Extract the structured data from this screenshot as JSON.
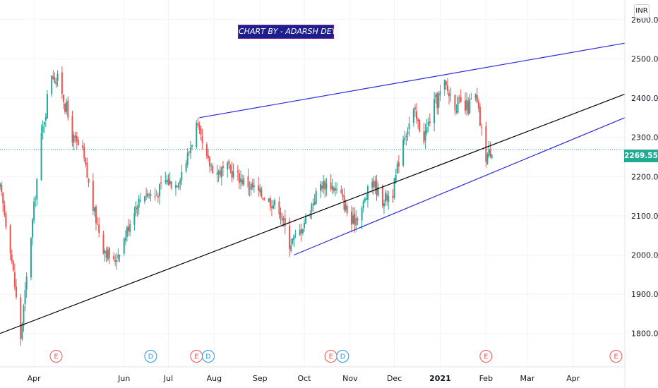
{
  "header": {
    "title": "CHART BY - ADARSH DEY",
    "currency": "INR"
  },
  "last_price": "2269.55",
  "colors": {
    "up": "#26a69a",
    "down": "#ef5350",
    "trendline_blue": "#2a2adb",
    "trendline_black": "#000000",
    "last_price_tag": "#22ab94",
    "event_earnings": "#ef5350",
    "event_dividend": "#2196f3"
  },
  "chart_data": {
    "type": "candlestick",
    "symbol_currency": "INR",
    "ylim": [
      1715,
      2650
    ],
    "y_ticks": [
      "1800.00",
      "1900.00",
      "2000.00",
      "2100.00",
      "2200.00",
      "2300.00",
      "2400.00",
      "2500.00",
      "2600.00"
    ],
    "y_tick_values": [
      1800,
      1900,
      2000,
      2100,
      2200,
      2300,
      2400,
      2500,
      2600
    ],
    "x_ticks": [
      "Apr",
      "Jun",
      "Jul",
      "Aug",
      "Sep",
      "Oct",
      "Nov",
      "Dec",
      "2021",
      "Feb",
      "Mar",
      "Apr"
    ],
    "x_tick_bold": [
      false,
      false,
      false,
      false,
      false,
      false,
      false,
      false,
      true,
      false,
      false,
      false
    ],
    "x_range": [
      "2020-03-09",
      "2021-05-06"
    ],
    "x_tick_dates": [
      "2020-04-01",
      "2020-06-01",
      "2020-07-01",
      "2020-08-01",
      "2020-09-01",
      "2020-10-01",
      "2020-11-01",
      "2020-12-01",
      "2021-01-01",
      "2021-02-01",
      "2021-03-01",
      "2021-04-01"
    ],
    "close_trend": [
      [
        "2020-03-09",
        2170
      ],
      [
        "2020-03-16",
        2020
      ],
      [
        "2020-03-23",
        1790
      ],
      [
        "2020-03-30",
        2050
      ],
      [
        "2020-04-06",
        2300
      ],
      [
        "2020-04-13",
        2470
      ],
      [
        "2020-04-20",
        2420
      ],
      [
        "2020-04-27",
        2300
      ],
      [
        "2020-05-04",
        2260
      ],
      [
        "2020-05-11",
        2120
      ],
      [
        "2020-05-18",
        2020
      ],
      [
        "2020-05-25",
        1980
      ],
      [
        "2020-06-01",
        2040
      ],
      [
        "2020-06-08",
        2120
      ],
      [
        "2020-06-15",
        2160
      ],
      [
        "2020-06-22",
        2150
      ],
      [
        "2020-06-29",
        2190
      ],
      [
        "2020-07-06",
        2180
      ],
      [
        "2020-07-13",
        2240
      ],
      [
        "2020-07-20",
        2330
      ],
      [
        "2020-07-27",
        2240
      ],
      [
        "2020-08-03",
        2210
      ],
      [
        "2020-08-10",
        2220
      ],
      [
        "2020-08-17",
        2200
      ],
      [
        "2020-08-24",
        2180
      ],
      [
        "2020-08-31",
        2160
      ],
      [
        "2020-09-07",
        2140
      ],
      [
        "2020-09-14",
        2120
      ],
      [
        "2020-09-21",
        2030
      ],
      [
        "2020-09-28",
        2060
      ],
      [
        "2020-10-05",
        2120
      ],
      [
        "2020-10-12",
        2180
      ],
      [
        "2020-10-19",
        2180
      ],
      [
        "2020-10-26",
        2150
      ],
      [
        "2020-11-02",
        2080
      ],
      [
        "2020-11-09",
        2120
      ],
      [
        "2020-11-16",
        2190
      ],
      [
        "2020-11-23",
        2140
      ],
      [
        "2020-11-30",
        2160
      ],
      [
        "2020-12-07",
        2300
      ],
      [
        "2020-12-14",
        2360
      ],
      [
        "2020-12-21",
        2300
      ],
      [
        "2020-12-28",
        2380
      ],
      [
        "2021-01-04",
        2430
      ],
      [
        "2021-01-11",
        2390
      ],
      [
        "2021-01-18",
        2370
      ],
      [
        "2021-01-25",
        2400
      ],
      [
        "2021-02-01",
        2250
      ],
      [
        "2021-02-05",
        2269.55
      ]
    ],
    "trendlines": [
      {
        "color": "blue",
        "from": [
          "2020-07-22",
          2350
        ],
        "to": [
          "2021-05-06",
          2540
        ]
      },
      {
        "color": "blue",
        "from": [
          "2020-09-24",
          2000
        ],
        "to": [
          "2021-05-06",
          2350
        ]
      },
      {
        "color": "black",
        "from": [
          "2020-03-09",
          1800
        ],
        "to": [
          "2021-05-06",
          2410
        ]
      }
    ],
    "events": [
      {
        "label": "E",
        "kind": "earnings",
        "date": "2020-04-16"
      },
      {
        "label": "D",
        "kind": "dividend",
        "date": "2020-06-19"
      },
      {
        "label": "E",
        "kind": "earnings",
        "date": "2020-07-20"
      },
      {
        "label": "D",
        "kind": "dividend",
        "date": "2020-07-28"
      },
      {
        "label": "E",
        "kind": "earnings",
        "date": "2020-10-19"
      },
      {
        "label": "D",
        "kind": "dividend",
        "date": "2020-10-27"
      },
      {
        "label": "E",
        "kind": "earnings",
        "date": "2021-02-01"
      },
      {
        "label": "E",
        "kind": "earnings",
        "date": "2021-04-30"
      }
    ]
  }
}
